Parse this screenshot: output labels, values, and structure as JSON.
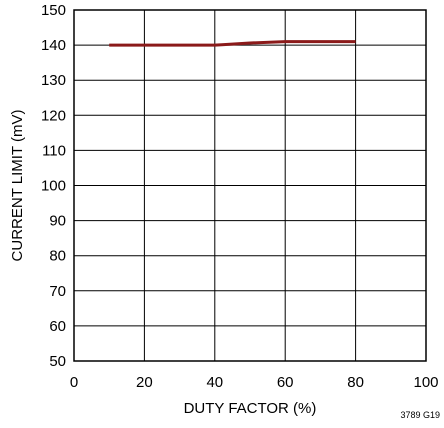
{
  "chart_data": {
    "type": "line",
    "title": "",
    "xlabel": "DUTY FACTOR (%)",
    "ylabel": "CURRENT LIMIT (mV)",
    "xlim": [
      0,
      100
    ],
    "ylim": [
      50,
      150
    ],
    "x_ticks": [
      0,
      20,
      40,
      60,
      80,
      100
    ],
    "y_ticks": [
      50,
      60,
      70,
      80,
      90,
      100,
      110,
      120,
      130,
      140,
      150
    ],
    "grid": true,
    "legend": "none",
    "series": [
      {
        "color": "#8b1a1a",
        "x": [
          10,
          20,
          30,
          40,
          42,
          50,
          60,
          70,
          80
        ],
        "y": [
          140,
          140,
          140,
          140,
          140.1,
          140.6,
          141,
          141,
          141
        ]
      }
    ],
    "annotation": "3789 G19"
  }
}
